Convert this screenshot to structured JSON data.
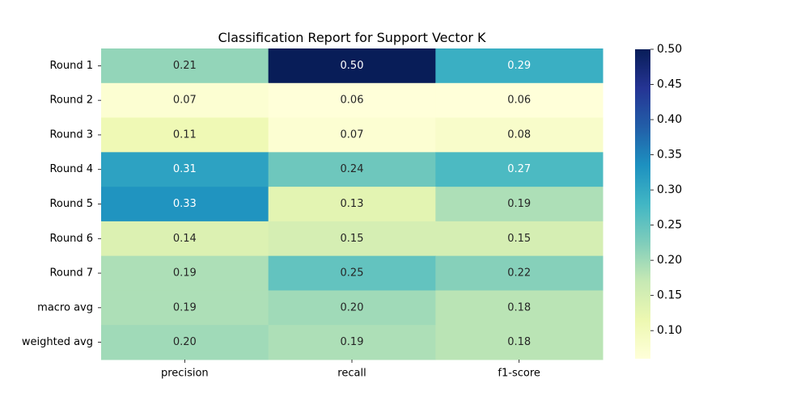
{
  "chart_data": {
    "type": "heatmap",
    "title": "Classification Report for Support Vector K",
    "xlabel": "",
    "ylabel": "",
    "x_categories": [
      "precision",
      "recall",
      "f1-score"
    ],
    "y_categories": [
      "Round 1",
      "Round 2",
      "Round 3",
      "Round 4",
      "Round 5",
      "Round 6",
      "Round 7",
      "macro avg",
      "weighted avg"
    ],
    "values": [
      [
        0.21,
        0.5,
        0.29
      ],
      [
        0.07,
        0.06,
        0.06
      ],
      [
        0.11,
        0.07,
        0.08
      ],
      [
        0.31,
        0.24,
        0.27
      ],
      [
        0.33,
        0.13,
        0.19
      ],
      [
        0.14,
        0.15,
        0.15
      ],
      [
        0.19,
        0.25,
        0.22
      ],
      [
        0.19,
        0.2,
        0.18
      ],
      [
        0.2,
        0.19,
        0.18
      ]
    ],
    "cell_labels": [
      [
        "0.21",
        "0.50",
        "0.29"
      ],
      [
        "0.07",
        "0.06",
        "0.06"
      ],
      [
        "0.11",
        "0.07",
        "0.08"
      ],
      [
        "0.31",
        "0.24",
        "0.27"
      ],
      [
        "0.33",
        "0.13",
        "0.19"
      ],
      [
        "0.14",
        "0.15",
        "0.15"
      ],
      [
        "0.19",
        "0.25",
        "0.22"
      ],
      [
        "0.19",
        "0.20",
        "0.18"
      ],
      [
        "0.20",
        "0.19",
        "0.18"
      ]
    ],
    "colormap": "YlGnBu",
    "color_range": [
      0.06,
      0.5
    ],
    "colorbar": {
      "ticks": [
        0.1,
        0.15,
        0.2,
        0.25,
        0.3,
        0.35,
        0.4,
        0.45,
        0.5
      ],
      "tick_labels": [
        "0.10",
        "0.15",
        "0.20",
        "0.25",
        "0.30",
        "0.35",
        "0.40",
        "0.45",
        "0.50"
      ]
    },
    "colormap_stops": [
      "#ffffd9",
      "#edf8b1",
      "#c7e9b4",
      "#7fcdbb",
      "#41b6c4",
      "#1d91c0",
      "#225ea8",
      "#253494",
      "#081d58"
    ]
  }
}
